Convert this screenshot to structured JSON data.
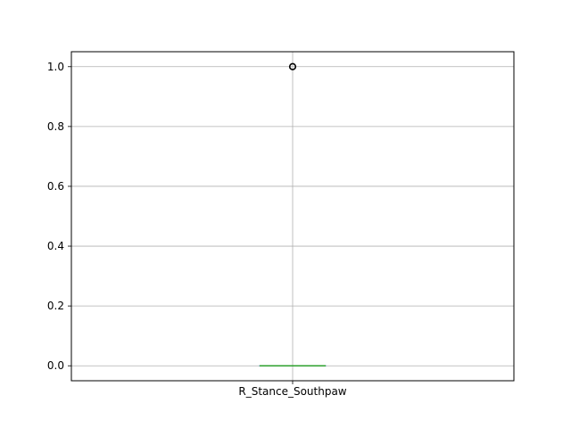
{
  "chart_data": {
    "type": "box",
    "title": "",
    "xlabel": "",
    "ylabel": "",
    "categories": [
      "R_Stance_Southpaw"
    ],
    "ylim": [
      -0.05,
      1.05
    ],
    "yticks": [
      "0.0",
      "0.2",
      "0.4",
      "0.6",
      "0.8",
      "1.0"
    ],
    "grid": true,
    "boxes": [
      {
        "name": "R_Stance_Southpaw",
        "q1": 0.0,
        "median": 0.0,
        "q3": 0.0,
        "whisker_low": 0.0,
        "whisker_high": 0.0,
        "outliers": [
          1.0
        ]
      }
    ],
    "colors": {
      "box": "#1f77b4",
      "median": "#2ca02c",
      "grid": "#b0b0b0",
      "outlier": "#000000"
    }
  }
}
